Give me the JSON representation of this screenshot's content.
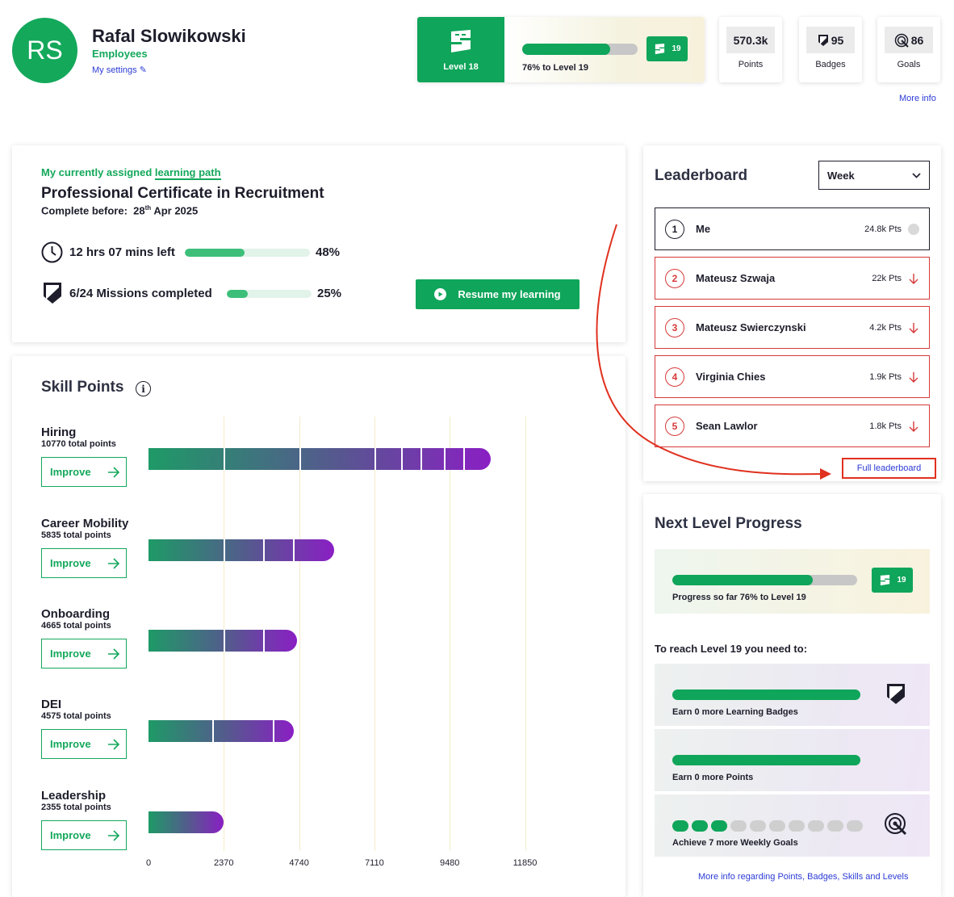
{
  "user": {
    "initials": "RS",
    "name": "Rafal Slowikowski",
    "role": "Employees",
    "settings_link": "My settings"
  },
  "level": {
    "current_label": "Level 18",
    "progress_percent": 76,
    "progress_text": "76% to Level 19",
    "next_level": "19"
  },
  "stats": [
    {
      "value": "570.3k",
      "label": "Points",
      "icon": ""
    },
    {
      "value": "95",
      "label": "Badges",
      "icon": "badge-icon"
    },
    {
      "value": "86",
      "label": "Goals",
      "icon": "goal-icon"
    }
  ],
  "more_info": "More info",
  "learning_path": {
    "label_prefix": "My currently assigned",
    "label_link": "learning path",
    "title": "Professional Certificate in Recruitment",
    "complete_before_label": "Complete before:",
    "complete_before_day": "28",
    "complete_before_suffix": "th",
    "complete_before_rest": "Apr 2025",
    "time_left": "12 hrs 07 mins left",
    "time_percent": 48,
    "time_percent_label": "48%",
    "missions": "6/24 Missions completed",
    "missions_percent": 25,
    "missions_percent_label": "25%",
    "resume_button": "Resume my learning"
  },
  "skill_points": {
    "title": "Skill Points",
    "info_icon": "i",
    "improve_label": "Improve",
    "chart_data": {
      "type": "bar",
      "orientation": "horizontal",
      "categories": [
        "Hiring",
        "Career Mobility",
        "Onboarding",
        "DEI",
        "Leadership"
      ],
      "values": [
        10770,
        5835,
        4665,
        4575,
        2355
      ],
      "totals_text": [
        "10770 total points",
        "5835 total points",
        "4665 total points",
        "4575 total points",
        "2355 total points"
      ],
      "x_ticks": [
        "0",
        "2370",
        "4740",
        "7110",
        "9480",
        "11850"
      ],
      "xlim": [
        0,
        11850
      ],
      "grid": true
    }
  },
  "leaderboard": {
    "title": "Leaderboard",
    "period": "Week",
    "rows": [
      {
        "rank": "1",
        "name": "Me",
        "points": "24.8k Pts",
        "trend": "none"
      },
      {
        "rank": "2",
        "name": "Mateusz Szwaja",
        "points": "22k Pts",
        "trend": "down"
      },
      {
        "rank": "3",
        "name": "Mateusz Swierczynski",
        "points": "4.2k Pts",
        "trend": "down"
      },
      {
        "rank": "4",
        "name": "Virginia Chies",
        "points": "1.9k Pts",
        "trend": "down"
      },
      {
        "rank": "5",
        "name": "Sean Lawlor",
        "points": "1.8k Pts",
        "trend": "down"
      }
    ],
    "full_link": "Full leaderboard",
    "annotation_color": "#e0301e"
  },
  "next_level": {
    "title": "Next Level Progress",
    "progress_percent": 76,
    "progress_text": "Progress so far 76% to Level 19",
    "badge": "19",
    "need_title": "To reach Level 19 you need to:",
    "requirements": [
      {
        "text": "Earn 0 more Learning Badges",
        "icon": "badge-icon",
        "fill": 1.0
      },
      {
        "text": "Earn 0 more Points",
        "icon": "",
        "fill": 1.0
      },
      {
        "text": "Achieve 7 more Weekly Goals",
        "icon": "goal-icon",
        "goals_done": 3,
        "goals_total": 10
      }
    ],
    "more_info": "More info regarding Points, Badges, Skills and Levels"
  },
  "colors": {
    "brand_green": "#0fa55a",
    "accent_purple": "#8a1fc4",
    "alert_red": "#d63a3a",
    "link_blue": "#2b3bd6"
  }
}
